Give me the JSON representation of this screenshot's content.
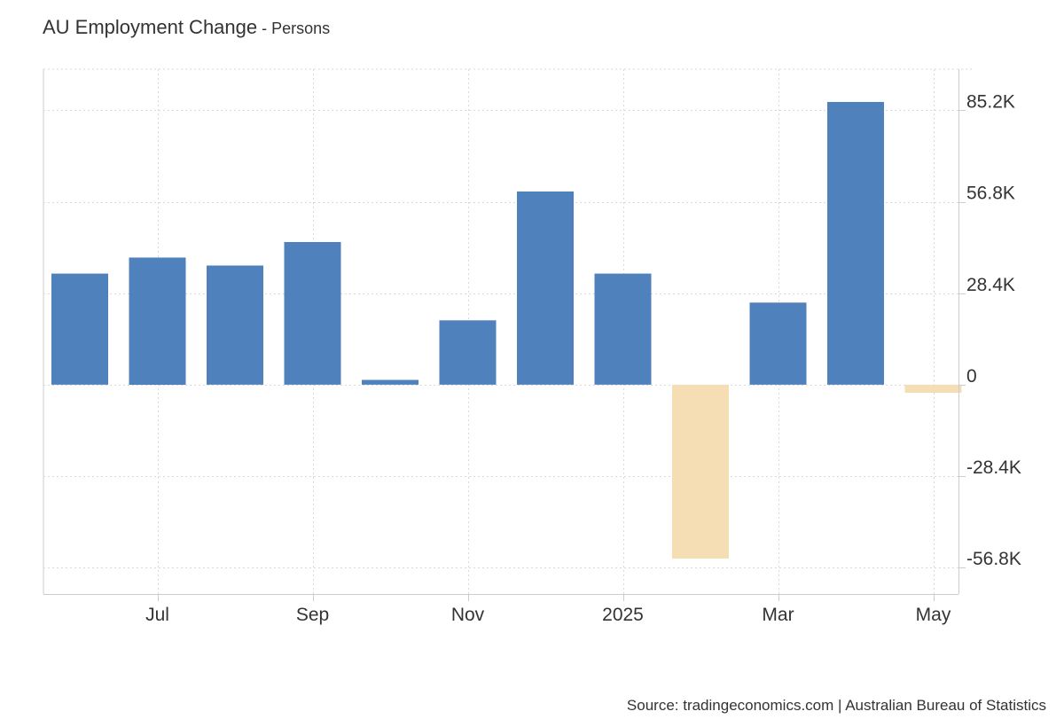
{
  "header": {
    "title": "AU Employment Change",
    "separator": " - ",
    "subtitle": "Persons"
  },
  "source": "Source: tradingeconomics.com | Australian Bureau of Statistics",
  "colors": {
    "positive": "#4f81bd",
    "negative": "#f5deb3",
    "grid": "#d9d9d9",
    "axis": "#cccccc"
  },
  "chart_data": {
    "type": "bar",
    "categories": [
      "2024-06",
      "2024-07",
      "2024-08",
      "2024-09",
      "2024-10",
      "2024-11",
      "2024-12",
      "2025-01",
      "2025-02",
      "2025-03",
      "2025-04",
      "2025-05"
    ],
    "values": [
      34500,
      39500,
      37000,
      44300,
      1500,
      20000,
      60000,
      34500,
      -54000,
      25500,
      87800,
      -2500
    ],
    "x_tick_labels": [
      {
        "label": "Jul",
        "category": "2024-07"
      },
      {
        "label": "Sep",
        "category": "2024-09"
      },
      {
        "label": "Nov",
        "category": "2024-11"
      },
      {
        "label": "2025",
        "category": "2025-01"
      },
      {
        "label": "Mar",
        "category": "2025-03"
      },
      {
        "label": "May",
        "category": "2025-05"
      }
    ],
    "y_ticks": [
      {
        "value": 85200,
        "label": "85.2K"
      },
      {
        "value": 56800,
        "label": "56.8K"
      },
      {
        "value": 28400,
        "label": "28.4K"
      },
      {
        "value": 0,
        "label": "0"
      },
      {
        "value": -28400,
        "label": "-28.4K"
      },
      {
        "value": -56800,
        "label": "-56.8K"
      }
    ],
    "ylim": [
      -65000,
      98000
    ],
    "title": "AU Employment Change",
    "subtitle": "Persons",
    "xlabel": "",
    "ylabel": "",
    "grid": true,
    "y_axis_side": "right"
  }
}
